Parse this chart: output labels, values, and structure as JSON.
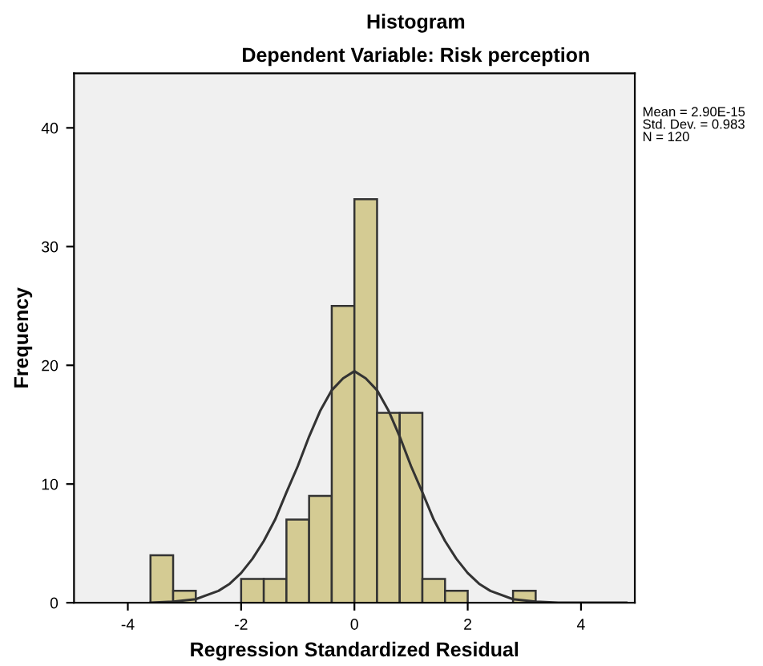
{
  "chart_data": {
    "type": "histogram",
    "title": "Histogram",
    "subtitle": "Dependent Variable: Risk perception",
    "xlabel": "Regression Standardized Residual",
    "ylabel": "Frequency",
    "bins": [
      -3.6,
      -3.2,
      -2.8,
      -2.4,
      -2.0,
      -1.6,
      -1.2,
      -0.8,
      -0.4,
      0,
      0.4,
      0.8,
      1.2,
      1.6,
      2.0,
      2.4,
      2.8,
      3.2
    ],
    "values": [
      4,
      1,
      0,
      0,
      2,
      2,
      7,
      9,
      25,
      34,
      16,
      16,
      2,
      1,
      0,
      0,
      1
    ],
    "color": "#d4cb93",
    "series": [
      {
        "type": "line",
        "color": "#333333",
        "x": [
          -3.6,
          -3.2,
          -2.8,
          -2.4,
          -2.2,
          -2.0,
          -1.8,
          -1.6,
          -1.4,
          -1.2,
          -1.0,
          -0.8,
          -0.6,
          -0.4,
          -0.2,
          0,
          0.2,
          0.4,
          0.6,
          0.8,
          1.0,
          1.2,
          1.4,
          1.6,
          1.8,
          2.0,
          2.2,
          2.4,
          2.8,
          3.2,
          3.6,
          4.0,
          4.4,
          4.8
        ],
        "values": [
          0,
          0.1,
          0.3,
          1.0,
          1.6,
          2.5,
          3.7,
          5.2,
          7.0,
          9.3,
          11.5,
          14.0,
          16.2,
          17.9,
          18.9,
          19.5,
          18.9,
          17.9,
          16.2,
          14.0,
          11.5,
          9.3,
          7.0,
          5.2,
          3.7,
          2.5,
          1.6,
          1.0,
          0.3,
          0.1,
          0,
          0,
          0,
          0
        ]
      }
    ],
    "xlim": [
      -4.95,
      4.95
    ],
    "xticks": [
      -4,
      -2,
      0,
      2,
      4
    ],
    "ylim": [
      0,
      44.6
    ],
    "yticks": [
      0,
      10,
      20,
      30,
      40
    ],
    "annotations": [
      "Mean = 2.90E-15\nStd. Dev. = 0.983\nN = 120"
    ]
  }
}
